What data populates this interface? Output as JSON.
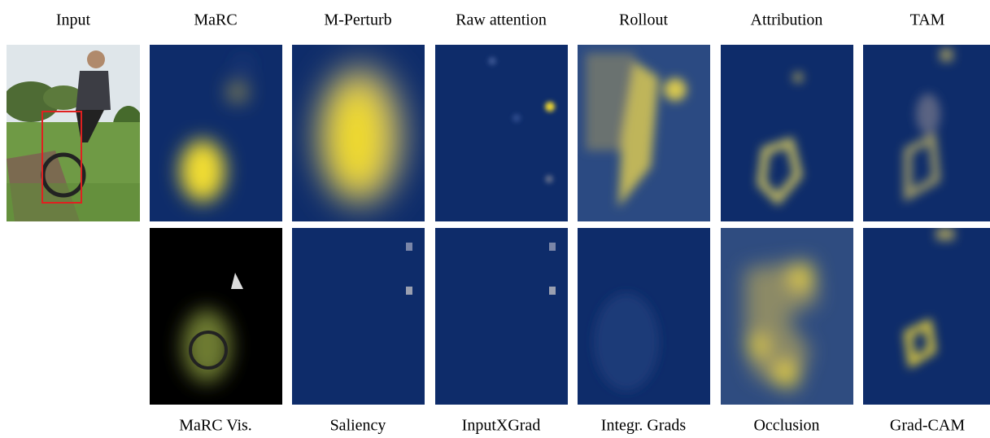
{
  "top_labels": [
    "Input",
    "MaRC",
    "M-Perturb",
    "Raw attention",
    "Rollout",
    "Attribution",
    "TAM"
  ],
  "bottom_labels": [
    "MaRC Vis.",
    "Saliency",
    "InputXGrad",
    "Integr. Grads",
    "Occlusion",
    "Grad-CAM"
  ]
}
